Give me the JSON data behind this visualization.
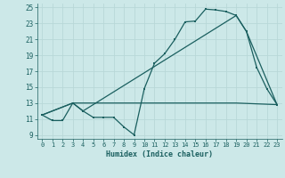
{
  "xlabel": "Humidex (Indice chaleur)",
  "ylabel": "",
  "bg_color": "#cce8e8",
  "grid_color": "#b8d8d8",
  "line_color": "#1a5f5f",
  "xlim": [
    -0.5,
    23.5
  ],
  "ylim": [
    8.5,
    25.5
  ],
  "xticks": [
    0,
    1,
    2,
    3,
    4,
    5,
    6,
    7,
    8,
    9,
    10,
    11,
    12,
    13,
    14,
    15,
    16,
    17,
    18,
    19,
    20,
    21,
    22,
    23
  ],
  "yticks": [
    9,
    11,
    13,
    15,
    17,
    19,
    21,
    23,
    25
  ],
  "line1_x": [
    0,
    1,
    2,
    3,
    4,
    5,
    6,
    7,
    8,
    9,
    10,
    11,
    12,
    13,
    14,
    15,
    16,
    17,
    18,
    19,
    20,
    21,
    22,
    23
  ],
  "line1_y": [
    11.5,
    10.8,
    10.8,
    13.0,
    12.0,
    11.2,
    11.2,
    11.2,
    10.0,
    9.0,
    14.8,
    18.0,
    19.2,
    21.0,
    23.2,
    23.3,
    24.8,
    24.7,
    24.5,
    24.0,
    22.0,
    17.5,
    14.8,
    12.8
  ],
  "line2_x": [
    0,
    3,
    4,
    19,
    20,
    23
  ],
  "line2_y": [
    11.5,
    13.0,
    12.0,
    24.0,
    22.0,
    12.8
  ],
  "line3_x": [
    0,
    3,
    19,
    23
  ],
  "line3_y": [
    11.5,
    13.0,
    13.0,
    12.8
  ]
}
